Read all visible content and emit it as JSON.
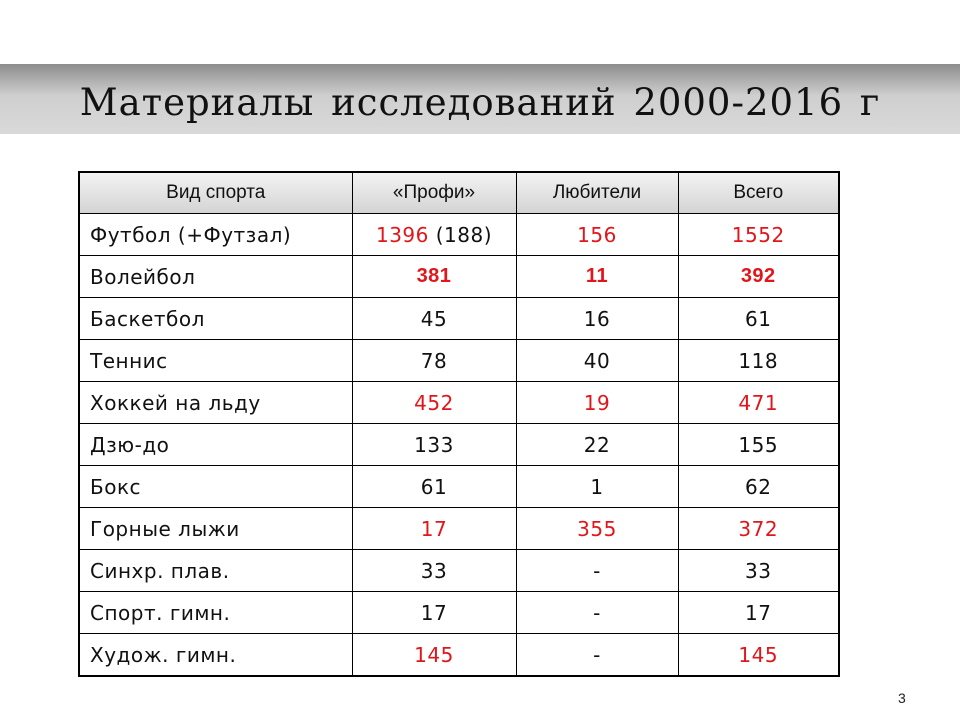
{
  "slide": {
    "title": "Материалы исследований 2000-2016 г",
    "page_number": "3"
  },
  "table": {
    "headers": [
      "Вид спорта",
      "«Профи»",
      "Любители",
      "Всего"
    ],
    "rows": [
      {
        "sport": "Футбол (+Футзал)",
        "pro_main": "1396",
        "pro_extra": " (188)",
        "amateur": "156",
        "total": "1552"
      },
      {
        "sport": "Волейбол",
        "pro": "381",
        "amateur": "11",
        "total": "392"
      },
      {
        "sport": "Баскетбол",
        "pro": "45",
        "amateur": "16",
        "total": "61"
      },
      {
        "sport": "Теннис",
        "pro": "78",
        "amateur": "40",
        "total": "118"
      },
      {
        "sport": "Хоккей на льду",
        "pro": "452",
        "amateur": "19",
        "total": "471"
      },
      {
        "sport": "Дзю-до",
        "pro": "133",
        "amateur": "22",
        "total": "155"
      },
      {
        "sport": "Бокс",
        "pro": "61",
        "amateur": "1",
        "total": "62"
      },
      {
        "sport": "Горные лыжи",
        "pro": "17",
        "amateur": "355",
        "total": "372"
      },
      {
        "sport": "Синхр. плав.",
        "pro": "33",
        "amateur": "-",
        "total": "33"
      },
      {
        "sport": "Спорт. гимн.",
        "pro": "17",
        "amateur": "-",
        "total": "17"
      },
      {
        "sport": "Худож. гимн.",
        "pro": "145",
        "amateur": "-",
        "total": "145"
      }
    ]
  },
  "colors": {
    "highlight_red": "#e0161b",
    "text": "#111111",
    "title_band_dark": "#8d8d8d",
    "title_band_light": "#d9d9d9"
  }
}
